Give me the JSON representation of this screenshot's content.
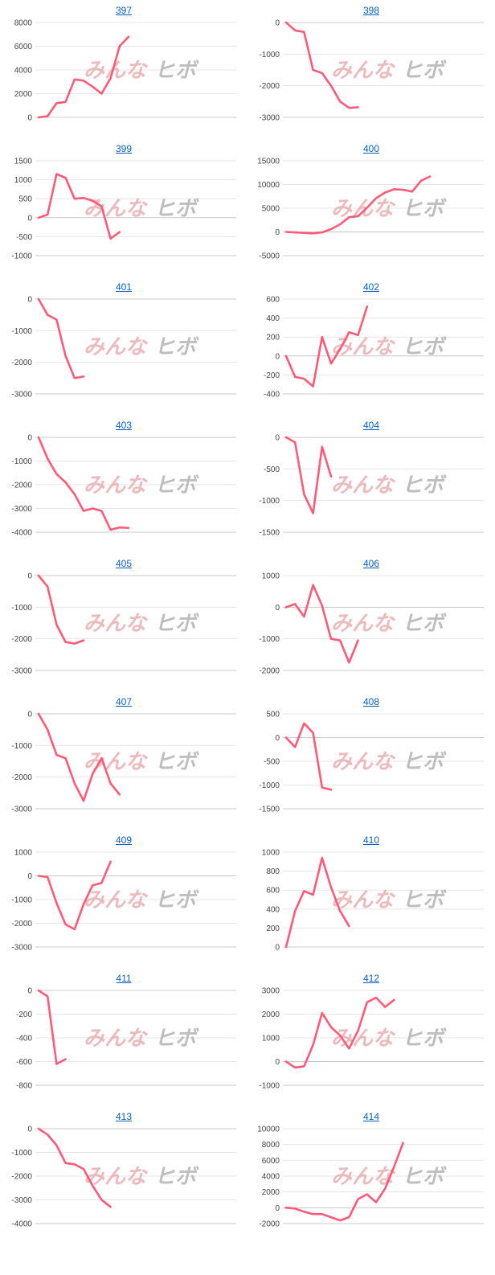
{
  "colors": {
    "line": "#ff5a78",
    "grid": "#e6e6e6",
    "axis": "#c8c8c8",
    "link": "#0b61c9"
  },
  "watermark": {
    "left": "みんな",
    "right": "ヒボ"
  },
  "chart_data": [
    {
      "type": "line",
      "title": "397",
      "yticks": [
        0,
        2000,
        4000,
        6000,
        8000
      ],
      "ylim": [
        0,
        8000
      ],
      "values": [
        0,
        100,
        1200,
        1300,
        3200,
        3100,
        2600,
        2000,
        3300,
        6000,
        6800
      ]
    },
    {
      "type": "line",
      "title": "398",
      "yticks": [
        -3000,
        -2000,
        -1000,
        0
      ],
      "ylim": [
        -3000,
        0
      ],
      "values": [
        0,
        -250,
        -300,
        -1500,
        -1600,
        -2000,
        -2500,
        -2700,
        -2680
      ]
    },
    {
      "type": "line",
      "title": "399",
      "yticks": [
        -1000,
        -500,
        0,
        500,
        1000,
        1500
      ],
      "ylim": [
        -1000,
        1500
      ],
      "values": [
        0,
        80,
        1150,
        1050,
        500,
        520,
        450,
        300,
        -550,
        -380
      ]
    },
    {
      "type": "line",
      "title": "400",
      "yticks": [
        -5000,
        0,
        5000,
        10000,
        15000
      ],
      "ylim": [
        -5000,
        15000
      ],
      "values": [
        0,
        -100,
        -200,
        -300,
        -100,
        600,
        1600,
        3100,
        3300,
        5100,
        7100,
        8300,
        9000,
        8900,
        8500,
        10800,
        11700
      ]
    },
    {
      "type": "line",
      "title": "401",
      "yticks": [
        -3000,
        -2000,
        -1000,
        0
      ],
      "ylim": [
        -3000,
        0
      ],
      "values": [
        0,
        -500,
        -650,
        -1800,
        -2500,
        -2450
      ]
    },
    {
      "type": "line",
      "title": "402",
      "yticks": [
        -400,
        -200,
        0,
        200,
        400,
        600
      ],
      "ylim": [
        -400,
        600
      ],
      "values": [
        0,
        -220,
        -240,
        -320,
        200,
        -80,
        70,
        250,
        220,
        520
      ]
    },
    {
      "type": "line",
      "title": "403",
      "yticks": [
        -4000,
        -3000,
        -2000,
        -1000,
        0
      ],
      "ylim": [
        -4000,
        0
      ],
      "values": [
        0,
        -900,
        -1550,
        -1900,
        -2400,
        -3100,
        -3000,
        -3100,
        -3900,
        -3800,
        -3820
      ]
    },
    {
      "type": "line",
      "title": "404",
      "yticks": [
        -1500,
        -1000,
        -500,
        0
      ],
      "ylim": [
        -1500,
        0
      ],
      "values": [
        0,
        -80,
        -900,
        -1200,
        -150,
        -620
      ]
    },
    {
      "type": "line",
      "title": "405",
      "yticks": [
        -3000,
        -2000,
        -1000,
        0
      ],
      "ylim": [
        -3000,
        0
      ],
      "values": [
        0,
        -350,
        -1550,
        -2100,
        -2150,
        -2050
      ]
    },
    {
      "type": "line",
      "title": "406",
      "yticks": [
        -2000,
        -1000,
        0,
        1000
      ],
      "ylim": [
        -2000,
        1000
      ],
      "values": [
        0,
        100,
        -300,
        700,
        50,
        -1000,
        -1050,
        -1750,
        -1050
      ]
    },
    {
      "type": "line",
      "title": "407",
      "yticks": [
        -3000,
        -2000,
        -1000,
        0
      ],
      "ylim": [
        -3000,
        0
      ],
      "values": [
        0,
        -500,
        -1300,
        -1400,
        -2200,
        -2750,
        -1900,
        -1400,
        -2200,
        -2550
      ]
    },
    {
      "type": "line",
      "title": "408",
      "yticks": [
        -1500,
        -1000,
        -500,
        0,
        500
      ],
      "ylim": [
        -1500,
        500
      ],
      "values": [
        0,
        -200,
        300,
        100,
        -1050,
        -1100
      ]
    },
    {
      "type": "line",
      "title": "409",
      "yticks": [
        -3000,
        -2000,
        -1000,
        0,
        1000
      ],
      "ylim": [
        -3000,
        1000
      ],
      "values": [
        0,
        -50,
        -1150,
        -2050,
        -2250,
        -1200,
        -400,
        -300,
        600
      ]
    },
    {
      "type": "line",
      "title": "410",
      "yticks": [
        0,
        200,
        400,
        600,
        800,
        1000
      ],
      "ylim": [
        0,
        1000
      ],
      "values": [
        0,
        380,
        590,
        550,
        940,
        630,
        380,
        220
      ]
    },
    {
      "type": "line",
      "title": "411",
      "yticks": [
        -800,
        -600,
        -400,
        -200,
        0
      ],
      "ylim": [
        -800,
        0
      ],
      "values": [
        0,
        -50,
        -620,
        -580
      ]
    },
    {
      "type": "line",
      "title": "412",
      "yticks": [
        -1000,
        0,
        1000,
        2000,
        3000
      ],
      "ylim": [
        -1000,
        3000
      ],
      "values": [
        0,
        -250,
        -200,
        700,
        2050,
        1450,
        1100,
        550,
        1300,
        2500,
        2700,
        2300,
        2600
      ]
    },
    {
      "type": "line",
      "title": "413",
      "yticks": [
        -4000,
        -3000,
        -2000,
        -1000,
        0
      ],
      "ylim": [
        -4000,
        0
      ],
      "values": [
        0,
        -250,
        -700,
        -1450,
        -1500,
        -1700,
        -2400,
        -3000,
        -3300
      ]
    },
    {
      "type": "line",
      "title": "414",
      "yticks": [
        -2000,
        0,
        2000,
        4000,
        6000,
        8000,
        10000
      ],
      "ylim": [
        -2000,
        10000
      ],
      "values": [
        0,
        -100,
        -500,
        -800,
        -800,
        -1200,
        -1600,
        -1200,
        1100,
        1700,
        700,
        2400,
        5200,
        8200
      ]
    }
  ]
}
